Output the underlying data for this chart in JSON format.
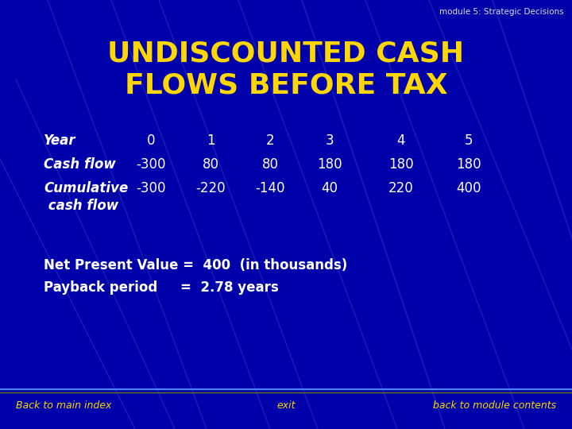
{
  "module_label": "module 5: Strategic Decisions",
  "title_line1": "UNDISCOUNTED CASH",
  "title_line2": "FLOWS BEFORE TAX",
  "title_color": "#FFD700",
  "module_label_color": "#DDDDDD",
  "bg_color": "#0000AA",
  "table_header_vals": [
    "0",
    "1",
    "2",
    "3",
    "4",
    "5"
  ],
  "row1_label": "Cash flow",
  "row1_values": [
    "-300",
    "80",
    "80",
    "180",
    "180",
    "180"
  ],
  "row2_label": "Cumulative",
  "row2_label2": " cash flow",
  "row2_values": [
    "-300",
    "-220",
    "-140",
    "40",
    "220",
    "400"
  ],
  "text_color_white": "#FFFFFF",
  "npv_text": "Net Present Value =  400  (in thousands)",
  "payback_text": "Payback period     =  2.78 years",
  "footer_left": "Back to main index",
  "footer_center": "exit",
  "footer_right": "back to module contents",
  "footer_color": "#FFD700",
  "footer_line_color1": "#4488FF",
  "footer_line_color2": "#667700",
  "diagonal_line_color": "#1A3ABA"
}
